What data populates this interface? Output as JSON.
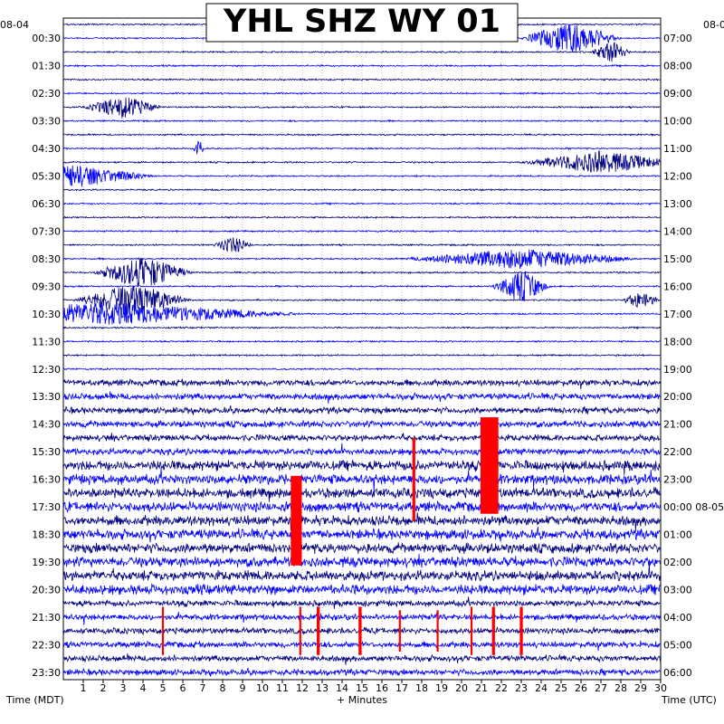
{
  "chart_data": {
    "type": "line",
    "title": "YHL SHZ WY 01",
    "left_corner_label": "08-04",
    "right_corner_label": "08-0",
    "xlabel": "+ Minutes",
    "left_axis_title": "Time (MDT)",
    "right_axis_title": "Time (UTC)",
    "x_ticks": [
      "1",
      "2",
      "3",
      "4",
      "5",
      "6",
      "7",
      "8",
      "9",
      "10",
      "11",
      "12",
      "13",
      "14",
      "15",
      "16",
      "17",
      "18",
      "19",
      "20",
      "21",
      "22",
      "23",
      "24",
      "25",
      "26",
      "27",
      "28",
      "29",
      "30"
    ],
    "xlim": [
      0,
      30
    ],
    "row_count": 48,
    "minutes_per_row": 30,
    "left_time_labels": [
      "00:30",
      "01:30",
      "02:30",
      "03:30",
      "04:30",
      "05:30",
      "06:30",
      "07:30",
      "08:30",
      "09:30",
      "10:30",
      "11:30",
      "12:30",
      "13:30",
      "14:30",
      "15:30",
      "16:30",
      "17:30",
      "18:30",
      "19:30",
      "20:30",
      "21:30",
      "22:30",
      "23:30"
    ],
    "right_time_labels": [
      "07:00",
      "08:00",
      "09:00",
      "10:00",
      "11:00",
      "12:00",
      "13:00",
      "14:00",
      "15:00",
      "16:00",
      "17:00",
      "18:00",
      "19:00",
      "20:00",
      "21:00",
      "22:00",
      "23:00",
      "00:00 08-05",
      "01:00",
      "02:00",
      "03:00",
      "04:00",
      "05:00",
      "06:00"
    ],
    "trace_colors": [
      "#000080",
      "#0000ff"
    ],
    "clip_color": "#ff0000",
    "grid": true,
    "events": [
      {
        "row": 1,
        "minute": 25.5,
        "amplitude": 3.0,
        "duration": 2.5
      },
      {
        "row": 2,
        "minute": 27.5,
        "amplitude": 2.0,
        "duration": 1.0
      },
      {
        "row": 6,
        "minute": 3.0,
        "amplitude": 2.0,
        "duration": 2.0
      },
      {
        "row": 9,
        "minute": 6.8,
        "amplitude": 1.8,
        "duration": 0.3
      },
      {
        "row": 10,
        "minute": 27.0,
        "amplitude": 2.0,
        "duration": 4.0
      },
      {
        "row": 11,
        "minute": 0.5,
        "amplitude": 2.0,
        "duration": 4.0
      },
      {
        "row": 16,
        "minute": 8.5,
        "amplitude": 1.5,
        "duration": 1.0
      },
      {
        "row": 17,
        "minute": 23.0,
        "amplitude": 1.8,
        "duration": 6.0
      },
      {
        "row": 18,
        "minute": 4.0,
        "amplitude": 3.0,
        "duration": 2.5
      },
      {
        "row": 19,
        "minute": 23.0,
        "amplitude": 3.0,
        "duration": 1.5
      },
      {
        "row": 20,
        "minute": 3.5,
        "amplitude": 3.0,
        "duration": 3.0
      },
      {
        "row": 20,
        "minute": 29.0,
        "amplitude": 1.5,
        "duration": 1.0
      },
      {
        "row": 21,
        "minute": 2.0,
        "amplitude": 2.0,
        "duration": 10.0
      }
    ],
    "clipped_events": [
      {
        "row": 32,
        "minute": 21.4,
        "amplitude_rows": 7.0,
        "width_minutes": 0.9
      },
      {
        "row": 36,
        "minute": 11.7,
        "amplitude_rows": 6.5,
        "width_minutes": 0.55
      },
      {
        "row": 44,
        "minute": 5.0,
        "amplitude_rows": 3.5,
        "width_minutes": 0.1
      },
      {
        "row": 44,
        "minute": 11.9,
        "amplitude_rows": 3.5,
        "width_minutes": 0.1
      },
      {
        "row": 44,
        "minute": 12.8,
        "amplitude_rows": 3.5,
        "width_minutes": 0.15
      },
      {
        "row": 44,
        "minute": 14.9,
        "amplitude_rows": 3.5,
        "width_minutes": 0.15
      },
      {
        "row": 44,
        "minute": 16.9,
        "amplitude_rows": 3.0,
        "width_minutes": 0.1
      },
      {
        "row": 44,
        "minute": 18.8,
        "amplitude_rows": 3.0,
        "width_minutes": 0.1
      },
      {
        "row": 44,
        "minute": 20.5,
        "amplitude_rows": 3.5,
        "width_minutes": 0.1
      },
      {
        "row": 44,
        "minute": 21.6,
        "amplitude_rows": 3.5,
        "width_minutes": 0.15
      },
      {
        "row": 44,
        "minute": 23.0,
        "amplitude_rows": 3.5,
        "width_minutes": 0.15
      },
      {
        "row": 33,
        "minute": 17.6,
        "amplitude_rows": 6.0,
        "width_minutes": 0.15
      }
    ]
  }
}
